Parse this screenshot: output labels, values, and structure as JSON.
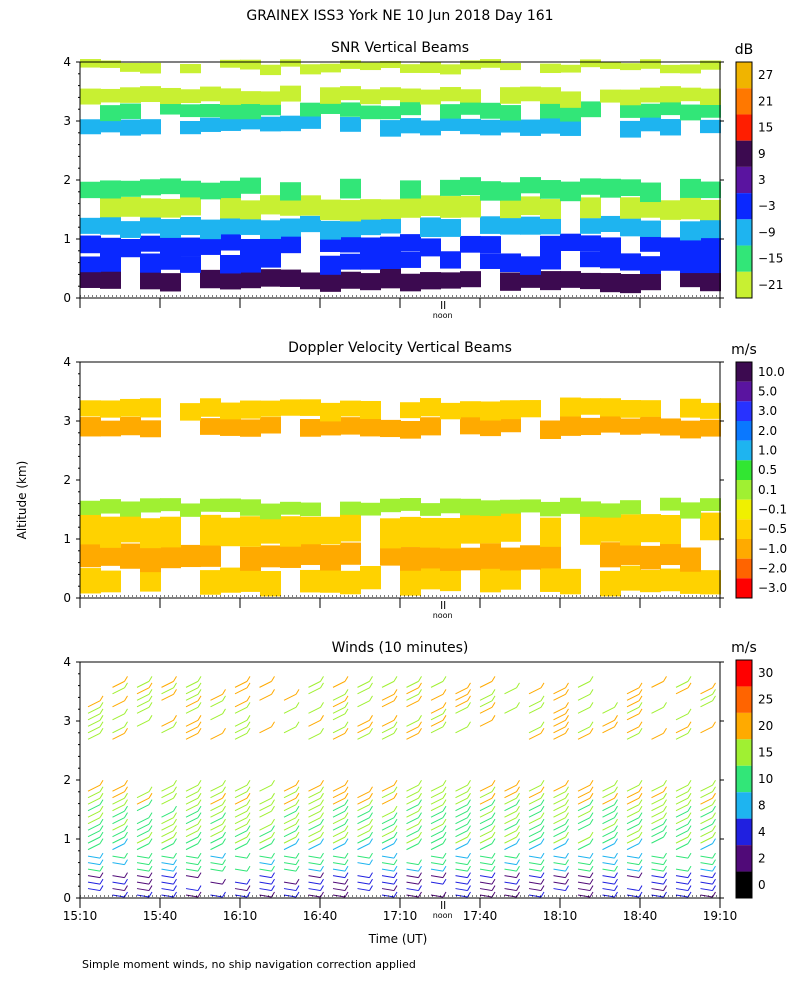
{
  "page": {
    "title": "GRAINEX ISS3 York NE  10 Jun 2018 Day 161"
  },
  "footer": "Simple moment winds, no ship navigation correction applied",
  "chart_data": [
    {
      "type": "heatmap",
      "title": "SNR Vertical Beams",
      "ylabel": "",
      "ylim": [
        0,
        4
      ],
      "yticks": [
        "0",
        "1",
        "2",
        "3",
        "4"
      ],
      "xmark": "noon",
      "colorbar": {
        "unit": "dB",
        "labels": [
          "27",
          "21",
          "15",
          "9",
          "3",
          "−3",
          "−9",
          "−15",
          "−21"
        ],
        "colors": [
          "#f0b400",
          "#ff7800",
          "#ff1e00",
          "#3c0a50",
          "#5a14a0",
          "#0a28ff",
          "#1eb4f0",
          "#32e678",
          "#c8f032"
        ]
      },
      "layers": [
        {
          "alt": [
            0.15,
            0.45
          ],
          "color": "#3c0a50"
        },
        {
          "alt": [
            0.45,
            0.75
          ],
          "color": "#0a28ff"
        },
        {
          "alt": [
            0.75,
            1.05
          ],
          "color": "#0a28ff"
        },
        {
          "alt": [
            1.05,
            1.35
          ],
          "color": "#1eb4f0"
        },
        {
          "alt": [
            1.35,
            1.7
          ],
          "color": "#c8f032"
        },
        {
          "alt": [
            1.7,
            2.0
          ],
          "color": "#32e678"
        },
        {
          "alt": [
            2.8,
            3.05
          ],
          "color": "#1eb4f0"
        },
        {
          "alt": [
            3.05,
            3.3
          ],
          "color": "#32e678"
        },
        {
          "alt": [
            3.3,
            3.55
          ],
          "color": "#c8f032"
        },
        {
          "alt": [
            3.85,
            4.0
          ],
          "color": "#c8f032"
        }
      ]
    },
    {
      "type": "heatmap",
      "title": "Doppler Velocity Vertical Beams",
      "ylabel": "Altitude (km)",
      "ylim": [
        0,
        4
      ],
      "yticks": [
        "0",
        "1",
        "2",
        "3",
        "4"
      ],
      "xmark": "noon",
      "colorbar": {
        "unit": "m/s",
        "labels": [
          "10.0",
          "5.0",
          "3.0",
          "2.0",
          "1.0",
          "0.5",
          "0.1",
          "−0.1",
          "−0.5",
          "−1.0",
          "−2.0",
          "−3.0"
        ],
        "colors": [
          "#3c0a50",
          "#5a14a0",
          "#2832ff",
          "#0a78ff",
          "#1eb4f0",
          "#32e632",
          "#a0f032",
          "#f0f000",
          "#ffd200",
          "#ffaa00",
          "#ff6400",
          "#ff0000"
        ]
      },
      "layers": [
        {
          "alt": [
            0.1,
            0.5
          ],
          "color": "#ffd200"
        },
        {
          "alt": [
            0.5,
            0.9
          ],
          "color": "#ffaa00"
        },
        {
          "alt": [
            0.9,
            1.4
          ],
          "color": "#ffd200"
        },
        {
          "alt": [
            1.4,
            1.65
          ],
          "color": "#a0f032"
        },
        {
          "alt": [
            2.75,
            3.05
          ],
          "color": "#ffaa00"
        },
        {
          "alt": [
            3.05,
            3.35
          ],
          "color": "#ffd200"
        }
      ]
    },
    {
      "type": "wind-barbs",
      "title": "Winds (10 minutes)",
      "xlabel": "Time (UT)",
      "ylim": [
        0,
        4
      ],
      "yticks": [
        "0",
        "1",
        "2",
        "3",
        "4"
      ],
      "xticks": [
        "15:10",
        "15:40",
        "16:10",
        "16:40",
        "17:10",
        "17:40",
        "18:10",
        "18:40",
        "19:10"
      ],
      "xmark": "noon",
      "colorbar": {
        "unit": "m/s",
        "labels": [
          "30",
          "25",
          "20",
          "15",
          "10",
          "8",
          "4",
          "2",
          "0"
        ],
        "colors": [
          "#ff0000",
          "#ff6400",
          "#ffaa00",
          "#a0f032",
          "#32e678",
          "#1eb4f0",
          "#2020e0",
          "#500a78",
          "#000000"
        ]
      }
    }
  ]
}
